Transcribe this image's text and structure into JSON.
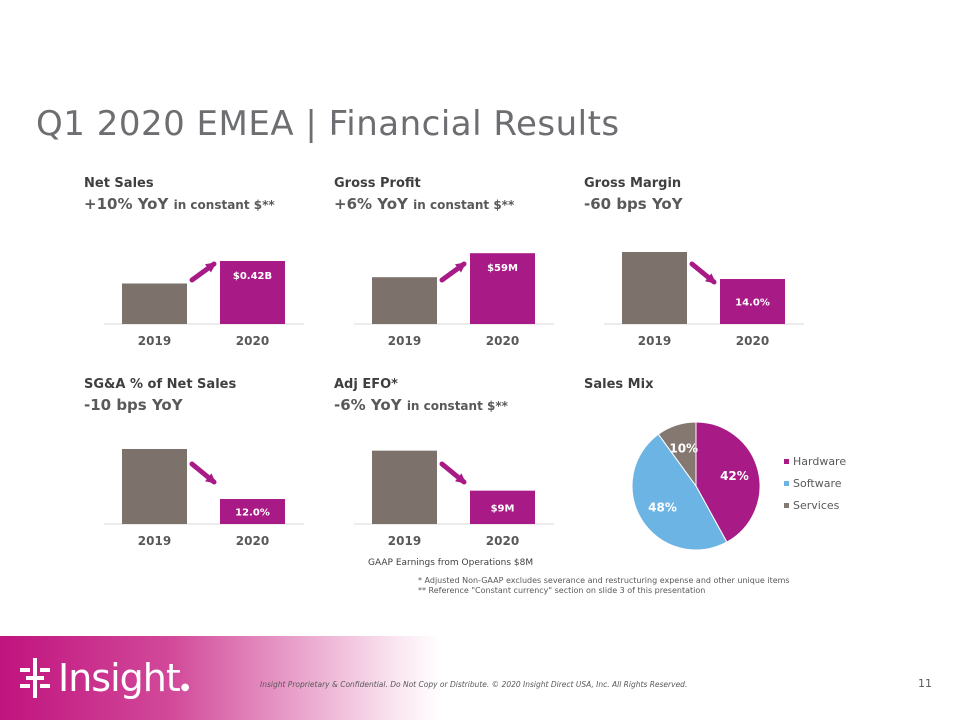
{
  "title": "Q1 2020 EMEA | Financial Results",
  "colors": {
    "bar_2019": "#7d716b",
    "bar_2020": "#a81b86",
    "arrow": "#a81b86",
    "axis": "#d9d9d9",
    "label": "#595959"
  },
  "panels": [
    {
      "title": "Net Sales",
      "subtitle": "+10% YoY",
      "subtitle_note": "in constant $**"
    },
    {
      "title": "Gross Profit",
      "subtitle": "+6% YoY",
      "subtitle_note": "in constant $**"
    },
    {
      "title": "Gross Margin",
      "subtitle": "-60 bps YoY",
      "subtitle_note": ""
    },
    {
      "title": "SG&A % of Net Sales",
      "subtitle": "-10 bps YoY",
      "subtitle_note": ""
    },
    {
      "title": "Adj EFO*",
      "subtitle": "-6% YoY",
      "subtitle_note": "in constant $**"
    },
    {
      "title": "Sales Mix",
      "subtitle": "",
      "subtitle_note": ""
    }
  ],
  "chart_data": [
    {
      "type": "bar",
      "categories": [
        "2019",
        "2020"
      ],
      "values": [
        0.27,
        0.42
      ],
      "data_labels": [
        "",
        "$0.42B"
      ],
      "trend": "up",
      "ylim": [
        0,
        0.6
      ]
    },
    {
      "type": "bar",
      "categories": [
        "2019",
        "2020"
      ],
      "values": [
        39,
        59
      ],
      "data_labels": [
        "",
        "$59M"
      ],
      "trend": "up",
      "ylim": [
        0,
        75
      ]
    },
    {
      "type": "bar",
      "categories": [
        "2019",
        "2020"
      ],
      "values": [
        14.6,
        14.0
      ],
      "data_labels": [
        "",
        "14.0%"
      ],
      "trend": "down",
      "ylim": [
        13.0,
        15.0
      ]
    },
    {
      "type": "bar",
      "categories": [
        "2019",
        "2020"
      ],
      "values": [
        12.1,
        12.0
      ],
      "data_labels": [
        "",
        "12.0%"
      ],
      "trend": "down",
      "ylim": [
        11.95,
        12.13
      ]
    },
    {
      "type": "bar",
      "categories": [
        "2019",
        "2020"
      ],
      "values": [
        9.6,
        9.0
      ],
      "data_labels": [
        "",
        "$9M"
      ],
      "trend": "down",
      "ylim": [
        8.5,
        9.85
      ]
    },
    {
      "type": "pie",
      "categories": [
        "Hardware",
        "Software",
        "Services"
      ],
      "values": [
        42,
        48,
        10
      ],
      "data_labels": [
        "42%",
        "48%",
        "10%"
      ],
      "colors": [
        "#a81b86",
        "#6cb4e4",
        "#857870"
      ],
      "legend": "right"
    }
  ],
  "gaap_note": "GAAP Earnings from Operations $8M",
  "footnotes": [
    "*   Adjusted Non-GAAP excludes severance and restructuring  expense and other unique items",
    "** Reference \"Constant currency\" section on slide 3 of this presentation"
  ],
  "footer": {
    "logo_text": "Insight",
    "legal": "Insight Proprietary & Confidential. Do Not Copy or Distribute. © 2020 Insight Direct USA, Inc. All Rights Reserved.",
    "page_number": "11"
  }
}
